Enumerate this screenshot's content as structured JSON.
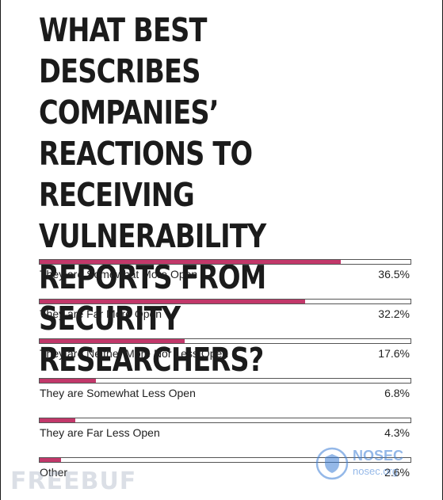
{
  "chart_data": {
    "type": "bar",
    "orientation": "horizontal",
    "title": "WHAT BEST DESCRIBES COMPANIES’ REACTIONS TO RECEIVING VULNERABILITY REPORTS FROM SECURITY RESEARCHERS?",
    "categories": [
      "They are Somewhat More Open",
      "They are Far More Open",
      "They are Neither More Nor Less Open",
      "They are Somewhat Less Open",
      "They are Far Less Open",
      "Other"
    ],
    "values": [
      36.5,
      32.2,
      17.6,
      6.8,
      4.3,
      2.6
    ],
    "value_labels": [
      "36.5%",
      "32.2%",
      "17.6%",
      "6.8%",
      "4.3%",
      "2.6%"
    ],
    "value_unit": "%",
    "xlim": [
      0,
      45
    ],
    "bar_color": "#c2386a",
    "grid": false,
    "legend": "none"
  },
  "watermarks": {
    "left": "FREEBUF",
    "right_main": "NOSEC",
    "right_sub": "nosec.org"
  }
}
